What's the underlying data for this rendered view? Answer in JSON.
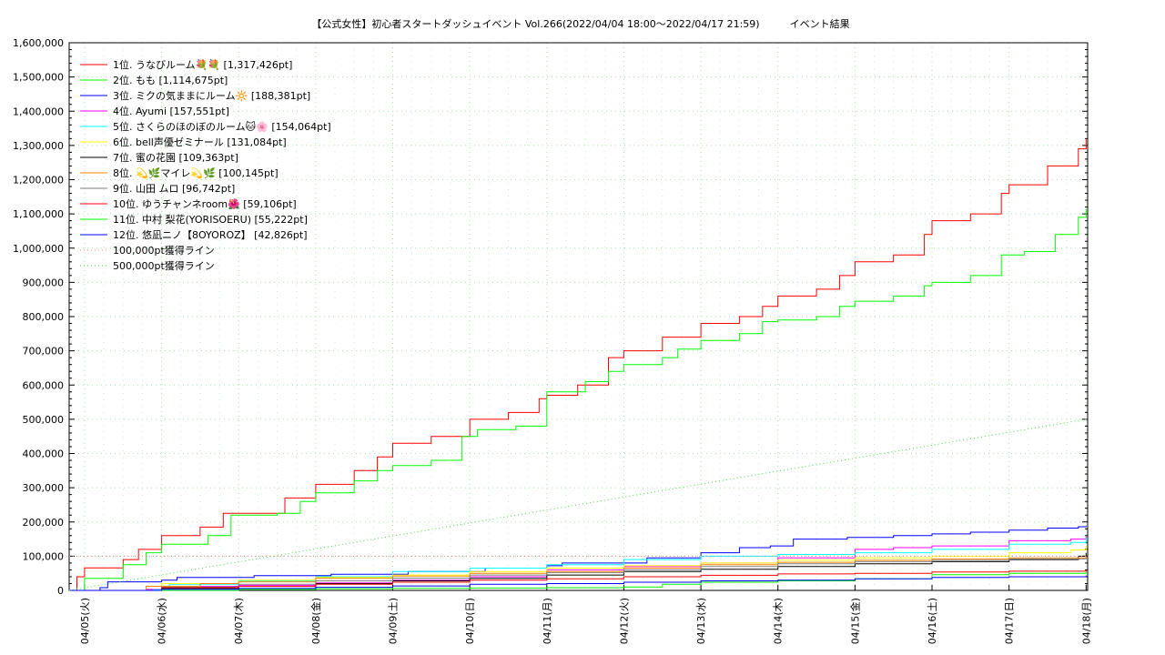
{
  "chart_data": {
    "type": "line",
    "title": "【公式女性】初心者スタートダッシュイベント Vol.266(2022/04/04 18:00～2022/04/17 21:59)　　　イベント結果",
    "xlabel": "",
    "ylabel": "",
    "x_ticks": [
      "04/05(火)",
      "04/06(水)",
      "04/07(木)",
      "04/08(金)",
      "04/09(土)",
      "04/10(日)",
      "04/11(月)",
      "04/12(火)",
      "04/13(水)",
      "04/14(木)",
      "04/15(金)",
      "04/16(土)",
      "04/17(日)",
      "04/18(月)"
    ],
    "xlim": [
      -0.2,
      13.02
    ],
    "ylim": [
      0,
      1600000
    ],
    "y_ticks": [
      "0",
      "100,000",
      "200,000",
      "300,000",
      "400,000",
      "500,000",
      "600,000",
      "700,000",
      "800,000",
      "900,000",
      "1,000,000",
      "1,100,000",
      "1,200,000",
      "1,300,000",
      "1,400,000",
      "1,500,000",
      "1,600,000"
    ],
    "grid": true,
    "legend_position": "top-left",
    "series": [
      {
        "name": "1位. うなびルーム💐💐 [1,317,426pt]",
        "color": "#ff0000",
        "style": "solid",
        "points": [
          [
            -0.2,
            0
          ],
          [
            -0.1,
            40000
          ],
          [
            0,
            66000
          ],
          [
            0.5,
            90000
          ],
          [
            0.7,
            120000
          ],
          [
            1,
            160000
          ],
          [
            1.5,
            185000
          ],
          [
            1.8,
            225000
          ],
          [
            2.3,
            225000
          ],
          [
            2.6,
            270000
          ],
          [
            3,
            310000
          ],
          [
            3.5,
            350000
          ],
          [
            3.8,
            390000
          ],
          [
            4,
            430000
          ],
          [
            4.5,
            450000
          ],
          [
            5,
            500000
          ],
          [
            5.5,
            520000
          ],
          [
            5.9,
            560000
          ],
          [
            6,
            570000
          ],
          [
            6.4,
            600000
          ],
          [
            6.8,
            680000
          ],
          [
            7,
            700000
          ],
          [
            7.5,
            740000
          ],
          [
            8,
            780000
          ],
          [
            8.5,
            800000
          ],
          [
            8.8,
            830000
          ],
          [
            9,
            860000
          ],
          [
            9.5,
            880000
          ],
          [
            9.8,
            920000
          ],
          [
            10,
            960000
          ],
          [
            10.5,
            980000
          ],
          [
            10.9,
            1040000
          ],
          [
            11,
            1080000
          ],
          [
            11.5,
            1100000
          ],
          [
            11.9,
            1160000
          ],
          [
            12,
            1185000
          ],
          [
            12.5,
            1240000
          ],
          [
            12.9,
            1290000
          ],
          [
            13,
            1317426
          ]
        ]
      },
      {
        "name": "2位. もも [1,114,675pt]",
        "color": "#00ff00",
        "style": "solid",
        "points": [
          [
            -0.2,
            0
          ],
          [
            0,
            35000
          ],
          [
            0.5,
            75000
          ],
          [
            0.8,
            110000
          ],
          [
            1,
            135000
          ],
          [
            1.6,
            160000
          ],
          [
            1.9,
            220000
          ],
          [
            2.5,
            225000
          ],
          [
            2.8,
            260000
          ],
          [
            3,
            285000
          ],
          [
            3.5,
            320000
          ],
          [
            3.8,
            350000
          ],
          [
            4,
            365000
          ],
          [
            4.5,
            380000
          ],
          [
            4.9,
            450000
          ],
          [
            5.1,
            470000
          ],
          [
            5.6,
            480000
          ],
          [
            6,
            580000
          ],
          [
            6.5,
            610000
          ],
          [
            6.8,
            640000
          ],
          [
            7,
            660000
          ],
          [
            7.5,
            680000
          ],
          [
            7.7,
            705000
          ],
          [
            8,
            730000
          ],
          [
            8.5,
            750000
          ],
          [
            8.8,
            785000
          ],
          [
            9,
            790000
          ],
          [
            9.5,
            800000
          ],
          [
            9.8,
            830000
          ],
          [
            10,
            845000
          ],
          [
            10.5,
            860000
          ],
          [
            10.9,
            890000
          ],
          [
            11,
            900000
          ],
          [
            11.5,
            920000
          ],
          [
            11.9,
            980000
          ],
          [
            12.2,
            990000
          ],
          [
            12.6,
            1040000
          ],
          [
            12.9,
            1090000
          ],
          [
            13,
            1114675
          ]
        ]
      },
      {
        "name": "3位. ミクの気ままにルーム🔆 [188,381pt]",
        "color": "#0000ff",
        "style": "solid",
        "points": [
          [
            -0.2,
            0
          ],
          [
            0.2,
            8000
          ],
          [
            0.3,
            25000
          ],
          [
            1,
            30000
          ],
          [
            1.2,
            38000
          ],
          [
            2.2,
            43000
          ],
          [
            3.2,
            47000
          ],
          [
            4.2,
            55000
          ],
          [
            5.2,
            65000
          ],
          [
            6,
            72000
          ],
          [
            6.2,
            80000
          ],
          [
            7.3,
            95000
          ],
          [
            8,
            110000
          ],
          [
            8.5,
            125000
          ],
          [
            8.9,
            130000
          ],
          [
            9.2,
            150000
          ],
          [
            9.9,
            155000
          ],
          [
            10.5,
            160000
          ],
          [
            11,
            165000
          ],
          [
            11.5,
            170000
          ],
          [
            12,
            176000
          ],
          [
            12.5,
            182000
          ],
          [
            12.9,
            186000
          ],
          [
            13,
            188381
          ]
        ]
      },
      {
        "name": "4位. Ayumi [157,551pt]",
        "color": "#ff00ff",
        "style": "solid",
        "points": [
          [
            -0.2,
            0
          ],
          [
            0.8,
            3000
          ],
          [
            1,
            12000
          ],
          [
            2,
            15000
          ],
          [
            3,
            22000
          ],
          [
            4,
            30000
          ],
          [
            5,
            40000
          ],
          [
            6,
            60000
          ],
          [
            7,
            70000
          ],
          [
            8,
            80000
          ],
          [
            9,
            95000
          ],
          [
            10,
            120000
          ],
          [
            10.5,
            125000
          ],
          [
            11,
            130000
          ],
          [
            12,
            145000
          ],
          [
            12.8,
            150000
          ],
          [
            13,
            157551
          ]
        ]
      },
      {
        "name": "5位. さくらのほのぼのルーム🐱🌸 [154,064pt]",
        "color": "#00ffff",
        "style": "solid",
        "points": [
          [
            -0.2,
            0
          ],
          [
            0.9,
            2000
          ],
          [
            1.1,
            18000
          ],
          [
            2,
            28000
          ],
          [
            3,
            40000
          ],
          [
            4,
            55000
          ],
          [
            5,
            65000
          ],
          [
            6,
            75000
          ],
          [
            7,
            90000
          ],
          [
            8,
            100000
          ],
          [
            9,
            105000
          ],
          [
            10,
            110000
          ],
          [
            11,
            120000
          ],
          [
            12,
            135000
          ],
          [
            12.8,
            140000
          ],
          [
            13,
            154064
          ]
        ]
      },
      {
        "name": "6位. bell声優ゼミナール [131,084pt]",
        "color": "#ffff00",
        "style": "solid",
        "points": [
          [
            -0.2,
            0
          ],
          [
            1,
            20000
          ],
          [
            2,
            30000
          ],
          [
            3,
            38000
          ],
          [
            4,
            45000
          ],
          [
            5,
            55000
          ],
          [
            6,
            65000
          ],
          [
            7,
            72000
          ],
          [
            8,
            80000
          ],
          [
            9,
            88000
          ],
          [
            10,
            95000
          ],
          [
            11,
            100000
          ],
          [
            12,
            110000
          ],
          [
            12.8,
            118000
          ],
          [
            13,
            131084
          ]
        ]
      },
      {
        "name": "7位. 蜜の花園 [109,363pt]",
        "color": "#000000",
        "style": "solid",
        "points": [
          [
            -0.2,
            0
          ],
          [
            1,
            6000
          ],
          [
            2,
            12000
          ],
          [
            3,
            20000
          ],
          [
            4,
            28000
          ],
          [
            5,
            35000
          ],
          [
            6,
            45000
          ],
          [
            7,
            55000
          ],
          [
            8,
            62000
          ],
          [
            9,
            70000
          ],
          [
            10,
            78000
          ],
          [
            11,
            84000
          ],
          [
            12,
            90000
          ],
          [
            12.9,
            100000
          ],
          [
            13,
            109363
          ]
        ]
      },
      {
        "name": "8位. 💫🌿マイレ💫🌿 [100,145pt]",
        "color": "#ff8000",
        "style": "solid",
        "points": [
          [
            -0.2,
            0
          ],
          [
            0.8,
            12000
          ],
          [
            1.5,
            20000
          ],
          [
            2,
            25000
          ],
          [
            3,
            35000
          ],
          [
            4,
            42000
          ],
          [
            5,
            50000
          ],
          [
            6,
            55000
          ],
          [
            7,
            65000
          ],
          [
            8,
            75000
          ],
          [
            9,
            82000
          ],
          [
            10,
            88000
          ],
          [
            11,
            92000
          ],
          [
            12,
            95000
          ],
          [
            13,
            100145
          ]
        ]
      },
      {
        "name": "9位. 山田 ムロ [96,742pt]",
        "color": "#808080",
        "style": "solid",
        "points": [
          [
            -0.2,
            0
          ],
          [
            1,
            10000
          ],
          [
            2,
            18000
          ],
          [
            3,
            28000
          ],
          [
            4,
            36000
          ],
          [
            5,
            45000
          ],
          [
            6,
            52000
          ],
          [
            7,
            60000
          ],
          [
            8,
            70000
          ],
          [
            9,
            78000
          ],
          [
            10,
            84000
          ],
          [
            11,
            88000
          ],
          [
            12,
            92000
          ],
          [
            13,
            96742
          ]
        ]
      },
      {
        "name": "10位. ゆうチャンネroom🌺 [59,106pt]",
        "color": "#ff0000",
        "style": "solid",
        "points": [
          [
            -0.2,
            0
          ],
          [
            1,
            8000
          ],
          [
            2,
            12000
          ],
          [
            3,
            18000
          ],
          [
            4,
            24000
          ],
          [
            5,
            30000
          ],
          [
            6,
            34000
          ],
          [
            7,
            40000
          ],
          [
            8,
            44000
          ],
          [
            9,
            48000
          ],
          [
            10,
            50000
          ],
          [
            11,
            54000
          ],
          [
            12,
            56000
          ],
          [
            13,
            59106
          ]
        ]
      },
      {
        "name": "11位. 中村 梨花(YORISOERU) [55,222pt]",
        "color": "#00ff00",
        "style": "solid",
        "points": [
          [
            -0.2,
            0
          ],
          [
            2,
            3000
          ],
          [
            3,
            5000
          ],
          [
            4,
            6000
          ],
          [
            5,
            7000
          ],
          [
            6,
            8000
          ],
          [
            7,
            10000
          ],
          [
            7.5,
            18000
          ],
          [
            8,
            24000
          ],
          [
            9,
            28000
          ],
          [
            10,
            34000
          ],
          [
            11,
            46000
          ],
          [
            12,
            50000
          ],
          [
            13,
            55222
          ]
        ]
      },
      {
        "name": "12位. 悠凪ニノ【8OYOROZ】 [42,826pt]",
        "color": "#0000ff",
        "style": "solid",
        "points": [
          [
            -0.2,
            0
          ],
          [
            1,
            3000
          ],
          [
            2,
            6000
          ],
          [
            3,
            9000
          ],
          [
            4,
            13000
          ],
          [
            5,
            18000
          ],
          [
            6,
            20000
          ],
          [
            7,
            24000
          ],
          [
            8,
            28000
          ],
          [
            9,
            30000
          ],
          [
            10,
            34000
          ],
          [
            11,
            38000
          ],
          [
            12,
            40000
          ],
          [
            13,
            42826
          ]
        ]
      },
      {
        "name": "100,000pt獲得ライン",
        "color": "#ff8080",
        "style": "dotted",
        "points": [
          [
            -0.2,
            100000
          ],
          [
            13.02,
            100000
          ]
        ]
      },
      {
        "name": "500,000pt獲得ライン",
        "color": "#40e040",
        "style": "dotted",
        "points": [
          [
            -0.2,
            0
          ],
          [
            13.0,
            500000
          ]
        ]
      }
    ]
  }
}
